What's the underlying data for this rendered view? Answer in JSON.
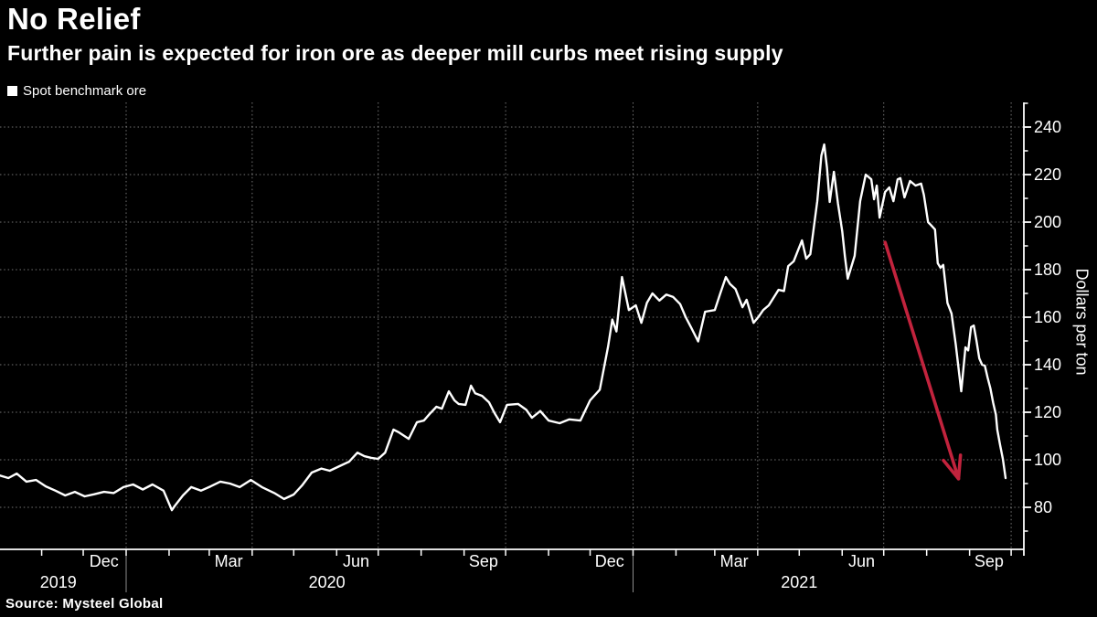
{
  "header": {
    "title": "No Relief",
    "subtitle": "Further pain is expected for iron ore as deeper mill curbs meet rising supply"
  },
  "legend": {
    "label": "Spot benchmark ore",
    "marker_color": "#ffffff"
  },
  "source": {
    "text": "Source: Mysteel Global"
  },
  "colors": {
    "background": "#000000",
    "line": "#ffffff",
    "axis": "#ffffff",
    "grid": "rgba(255,255,255,0.45)",
    "year_divider": "rgba(255,255,255,0.55)",
    "arrow": "#c2233d",
    "text": "#ffffff"
  },
  "chart_data": {
    "type": "line",
    "title": "No Relief",
    "series_name": "Spot benchmark ore",
    "ylabel": "Dollars per ton",
    "ylim": [
      62.3,
      250.4
    ],
    "y_ticks": [
      80,
      100,
      120,
      140,
      160,
      180,
      200,
      220,
      240
    ],
    "y_minor_tick_step": 10,
    "grid": "dotted",
    "legend_position": "top-left",
    "x_range": [
      "2019-10-01",
      "2021-10-08"
    ],
    "x_month_labels": [
      {
        "label": "Dec",
        "date": "2019-12-16"
      },
      {
        "label": "Mar",
        "date": "2020-03-15"
      },
      {
        "label": "Jun",
        "date": "2020-06-15"
      },
      {
        "label": "Sep",
        "date": "2020-09-15"
      },
      {
        "label": "Dec",
        "date": "2020-12-15"
      },
      {
        "label": "Mar",
        "date": "2021-03-15"
      },
      {
        "label": "Jun",
        "date": "2021-06-15"
      },
      {
        "label": "Sep",
        "date": "2021-09-15"
      }
    ],
    "x_year_labels": [
      {
        "label": "2019",
        "date": "2019-11-13"
      },
      {
        "label": "2020",
        "date": "2020-05-25"
      },
      {
        "label": "2021",
        "date": "2021-05-01"
      }
    ],
    "year_dividers": [
      "2020-01-01",
      "2021-01-01"
    ],
    "annotation_arrow": {
      "from": {
        "date": "2021-07-02",
        "value": 191.5
      },
      "to": {
        "date": "2021-08-24",
        "value": 92
      }
    },
    "points": [
      [
        "2019-10-01",
        93.5
      ],
      [
        "2019-10-08",
        92.3
      ],
      [
        "2019-10-14",
        94.2
      ],
      [
        "2019-10-21",
        90.8
      ],
      [
        "2019-10-28",
        91.5
      ],
      [
        "2019-11-04",
        88.8
      ],
      [
        "2019-11-11",
        87
      ],
      [
        "2019-11-18",
        85
      ],
      [
        "2019-11-25",
        86.5
      ],
      [
        "2019-12-02",
        84.6
      ],
      [
        "2019-12-09",
        85.5
      ],
      [
        "2019-12-16",
        86.5
      ],
      [
        "2019-12-23",
        86
      ],
      [
        "2019-12-30",
        88.5
      ],
      [
        "2020-01-06",
        89.6
      ],
      [
        "2020-01-13",
        87.5
      ],
      [
        "2020-01-20",
        89.6
      ],
      [
        "2020-01-28",
        87
      ],
      [
        "2020-02-03",
        78.8
      ],
      [
        "2020-02-05",
        80.5
      ],
      [
        "2020-02-11",
        85
      ],
      [
        "2020-02-17",
        88.5
      ],
      [
        "2020-02-24",
        87
      ],
      [
        "2020-03-02",
        88.8
      ],
      [
        "2020-03-09",
        90.8
      ],
      [
        "2020-03-16",
        90
      ],
      [
        "2020-03-23",
        88.5
      ],
      [
        "2020-03-31",
        91.5
      ],
      [
        "2020-04-08",
        88.5
      ],
      [
        "2020-04-17",
        86
      ],
      [
        "2020-04-24",
        83.5
      ],
      [
        "2020-05-01",
        85.4
      ],
      [
        "2020-05-07",
        89.2
      ],
      [
        "2020-05-14",
        94.6
      ],
      [
        "2020-05-21",
        96.3
      ],
      [
        "2020-05-27",
        95.4
      ],
      [
        "2020-06-03",
        97.3
      ],
      [
        "2020-06-10",
        99.2
      ],
      [
        "2020-06-16",
        103
      ],
      [
        "2020-06-21",
        101.5
      ],
      [
        "2020-06-26",
        100.8
      ],
      [
        "2020-07-01",
        100.4
      ],
      [
        "2020-07-06",
        103
      ],
      [
        "2020-07-12",
        112.7
      ],
      [
        "2020-07-16",
        111.5
      ],
      [
        "2020-07-23",
        108.8
      ],
      [
        "2020-07-29",
        115.8
      ],
      [
        "2020-08-03",
        116.5
      ],
      [
        "2020-08-07",
        119.2
      ],
      [
        "2020-08-12",
        122.3
      ],
      [
        "2020-08-16",
        121.5
      ],
      [
        "2020-08-21",
        128.8
      ],
      [
        "2020-08-25",
        125
      ],
      [
        "2020-08-28",
        123.5
      ],
      [
        "2020-09-02",
        123.1
      ],
      [
        "2020-09-06",
        131.2
      ],
      [
        "2020-09-09",
        128
      ],
      [
        "2020-09-14",
        126.9
      ],
      [
        "2020-09-19",
        124.2
      ],
      [
        "2020-09-23",
        119.6
      ],
      [
        "2020-09-27",
        115.8
      ],
      [
        "2020-10-02",
        123.1
      ],
      [
        "2020-10-10",
        123.5
      ],
      [
        "2020-10-16",
        121
      ],
      [
        "2020-10-20",
        117.7
      ],
      [
        "2020-10-26",
        120.5
      ],
      [
        "2020-11-01",
        116.5
      ],
      [
        "2020-11-09",
        115.4
      ],
      [
        "2020-11-16",
        117
      ],
      [
        "2020-11-24",
        116.5
      ],
      [
        "2020-12-01",
        125
      ],
      [
        "2020-12-08",
        129.5
      ],
      [
        "2020-12-14",
        147.7
      ],
      [
        "2020-12-17",
        159
      ],
      [
        "2020-12-20",
        154
      ],
      [
        "2020-12-24",
        176.9
      ],
      [
        "2020-12-29",
        163
      ],
      [
        "2021-01-03",
        165
      ],
      [
        "2021-01-07",
        157.6
      ],
      [
        "2021-01-11",
        166
      ],
      [
        "2021-01-15",
        170
      ],
      [
        "2021-01-20",
        167
      ],
      [
        "2021-01-25",
        169.5
      ],
      [
        "2021-01-30",
        168.5
      ],
      [
        "2021-02-04",
        165.5
      ],
      [
        "2021-02-08",
        160
      ],
      [
        "2021-02-12",
        155.6
      ],
      [
        "2021-02-17",
        149.8
      ],
      [
        "2021-02-22",
        162.3
      ],
      [
        "2021-03-01",
        163
      ],
      [
        "2021-03-05",
        170
      ],
      [
        "2021-03-09",
        176.9
      ],
      [
        "2021-03-12",
        174
      ],
      [
        "2021-03-16",
        171.8
      ],
      [
        "2021-03-21",
        164.2
      ],
      [
        "2021-03-24",
        167.3
      ],
      [
        "2021-03-29",
        157.6
      ],
      [
        "2021-04-02",
        160.5
      ],
      [
        "2021-04-05",
        163
      ],
      [
        "2021-04-09",
        165
      ],
      [
        "2021-04-16",
        171.5
      ],
      [
        "2021-04-20",
        171
      ],
      [
        "2021-04-23",
        181.5
      ],
      [
        "2021-04-27",
        183.5
      ],
      [
        "2021-04-30",
        188
      ],
      [
        "2021-05-03",
        192.3
      ],
      [
        "2021-05-06",
        184.6
      ],
      [
        "2021-05-09",
        186.5
      ],
      [
        "2021-05-12",
        200
      ],
      [
        "2021-05-14",
        208.8
      ],
      [
        "2021-05-17",
        228
      ],
      [
        "2021-05-19",
        232.7
      ],
      [
        "2021-05-21",
        223
      ],
      [
        "2021-05-23",
        208.5
      ],
      [
        "2021-05-26",
        221.2
      ],
      [
        "2021-05-29",
        207.7
      ],
      [
        "2021-06-01",
        196.2
      ],
      [
        "2021-06-03",
        185.4
      ],
      [
        "2021-06-05",
        176.2
      ],
      [
        "2021-06-10",
        185.8
      ],
      [
        "2021-06-14",
        208.8
      ],
      [
        "2021-06-18",
        220
      ],
      [
        "2021-06-22",
        218
      ],
      [
        "2021-06-24",
        209.6
      ],
      [
        "2021-06-26",
        215.4
      ],
      [
        "2021-06-28",
        201.9
      ],
      [
        "2021-07-02",
        212.7
      ],
      [
        "2021-07-05",
        214.6
      ],
      [
        "2021-07-08",
        208.8
      ],
      [
        "2021-07-11",
        218
      ],
      [
        "2021-07-13",
        218.5
      ],
      [
        "2021-07-16",
        210.4
      ],
      [
        "2021-07-20",
        217.3
      ],
      [
        "2021-07-24",
        215.4
      ],
      [
        "2021-07-28",
        216.2
      ],
      [
        "2021-07-30",
        211.5
      ],
      [
        "2021-08-02",
        200
      ],
      [
        "2021-08-04",
        198.8
      ],
      [
        "2021-08-07",
        196.9
      ],
      [
        "2021-08-09",
        182.7
      ],
      [
        "2021-08-11",
        180.8
      ],
      [
        "2021-08-13",
        182
      ],
      [
        "2021-08-16",
        166
      ],
      [
        "2021-08-19",
        161.5
      ],
      [
        "2021-08-22",
        148.5
      ],
      [
        "2021-08-26",
        128.8
      ],
      [
        "2021-08-29",
        147.3
      ],
      [
        "2021-08-31",
        146
      ],
      [
        "2021-09-02",
        155.8
      ],
      [
        "2021-09-04",
        156.5
      ],
      [
        "2021-09-06",
        150
      ],
      [
        "2021-09-08",
        142.7
      ],
      [
        "2021-09-10",
        140
      ],
      [
        "2021-09-12",
        139.6
      ],
      [
        "2021-09-14",
        134.6
      ],
      [
        "2021-09-16",
        130
      ],
      [
        "2021-09-18",
        124
      ],
      [
        "2021-09-20",
        119
      ],
      [
        "2021-09-21",
        112.7
      ],
      [
        "2021-09-23",
        106.2
      ],
      [
        "2021-09-25",
        100.4
      ],
      [
        "2021-09-27",
        92.3
      ]
    ]
  }
}
